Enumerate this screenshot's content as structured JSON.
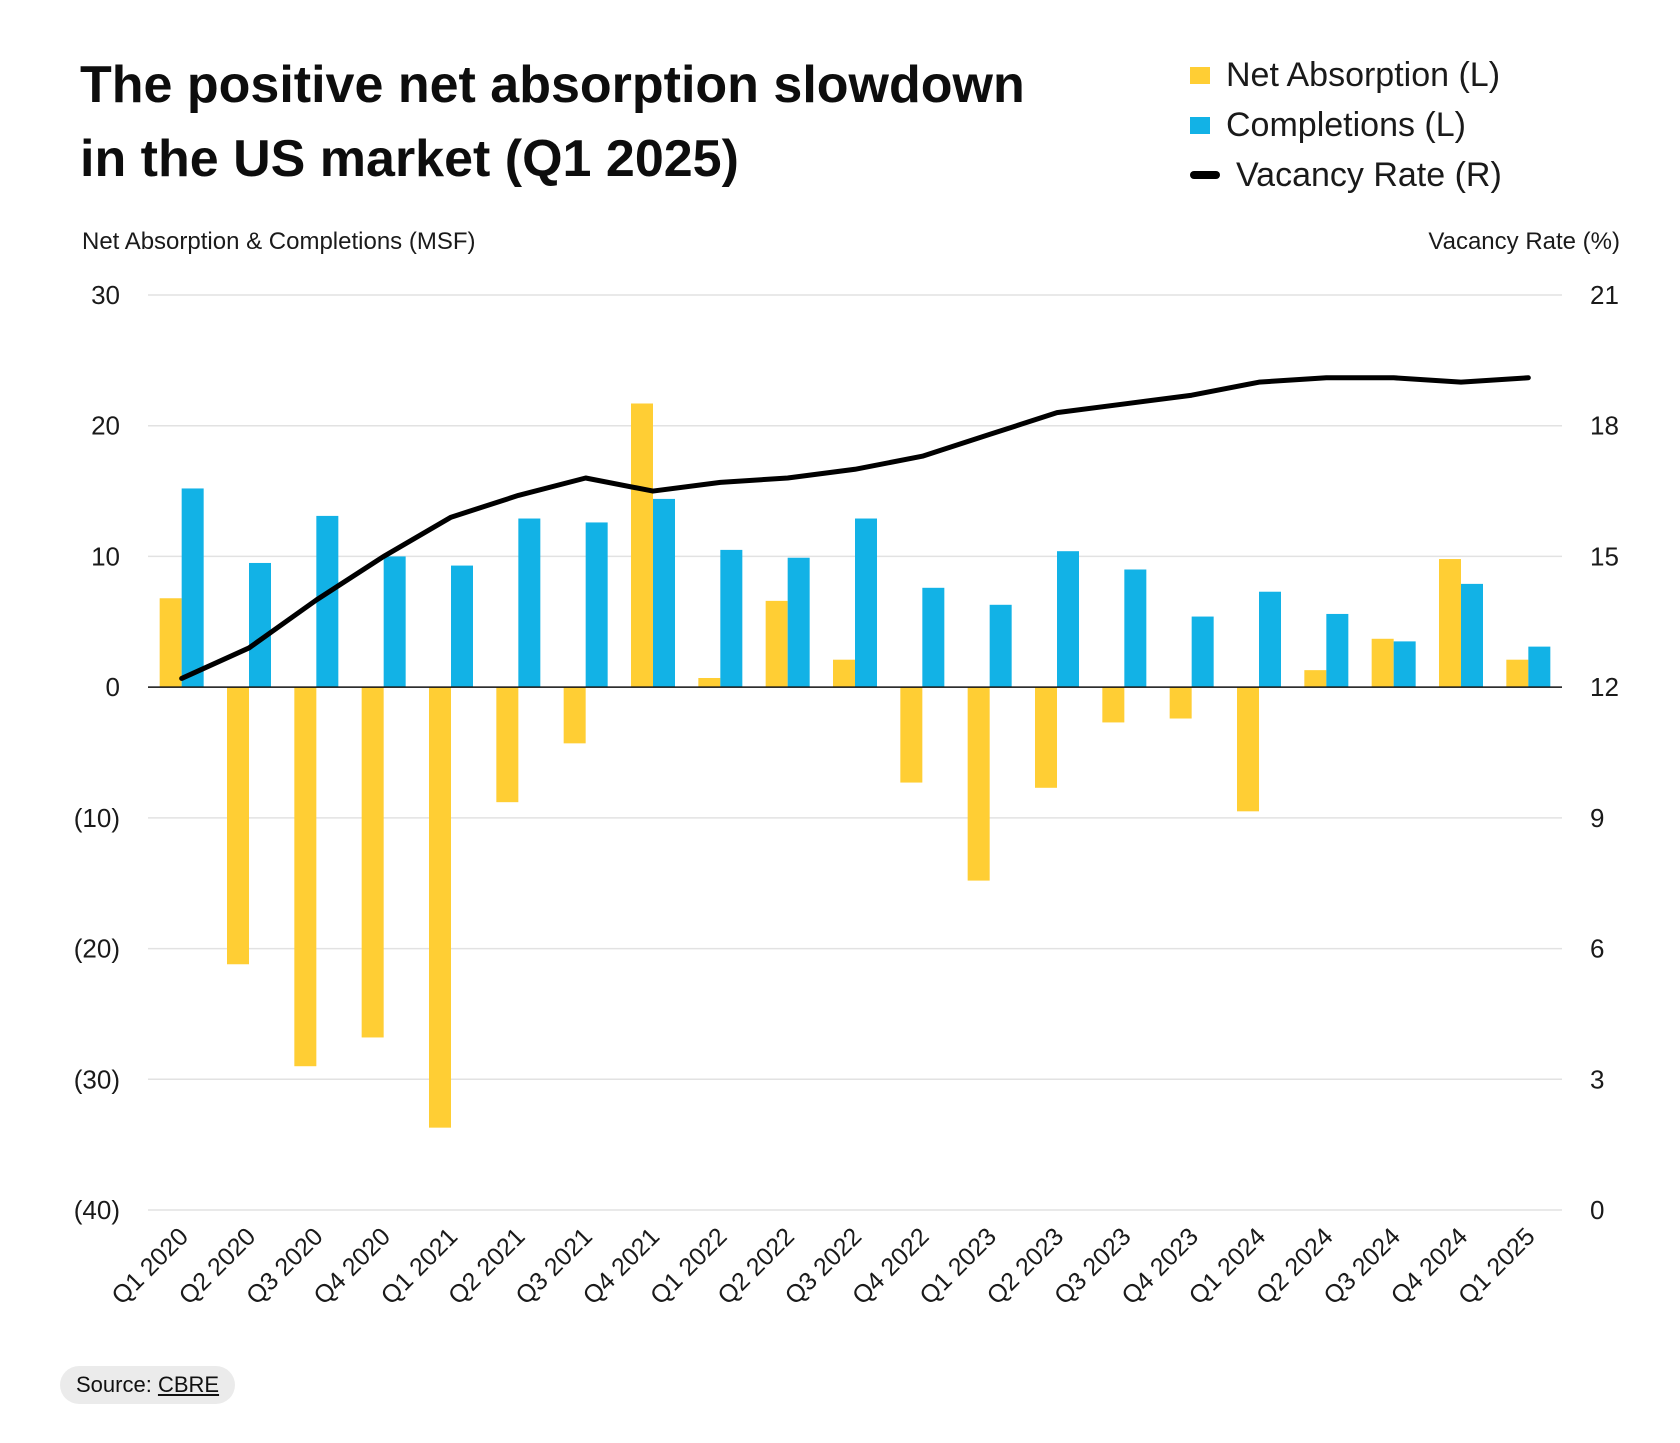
{
  "chart_data": {
    "type": "bar",
    "title_line1": "The positive net absorption slowdown",
    "title_line2": "in the US market (Q1 2025)",
    "ylabel": "Net Absorption & Completions (MSF)",
    "y2label": "Vacancy Rate (%)",
    "ylim": [
      -40,
      30
    ],
    "y2lim": [
      0,
      21
    ],
    "yticks": [
      30,
      20,
      10,
      0,
      -10,
      -20,
      -30,
      -40
    ],
    "ytick_labels": [
      "30",
      "20",
      "10",
      "0",
      "(10)",
      "(20)",
      "(30)",
      "(40)"
    ],
    "y2ticks": [
      21,
      18,
      15,
      12,
      9,
      6,
      3,
      0
    ],
    "y2tick_labels": [
      "21",
      "18",
      "15",
      "12",
      "9",
      "6",
      "3",
      "0"
    ],
    "categories": [
      "Q1 2020",
      "Q2 2020",
      "Q3 2020",
      "Q4 2020",
      "Q1 2021",
      "Q2 2021",
      "Q3 2021",
      "Q4 2021",
      "Q1 2022",
      "Q2 2022",
      "Q3 2022",
      "Q4 2022",
      "Q1 2023",
      "Q2 2023",
      "Q3 2023",
      "Q4 2023",
      "Q1 2024",
      "Q2 2024",
      "Q3 2024",
      "Q4 2024",
      "Q1 2025"
    ],
    "series": [
      {
        "name": "Net Absorption (L)",
        "axis": "left",
        "kind": "bar",
        "color": "#FFCE34",
        "values": [
          6.8,
          -21.2,
          -29.0,
          -26.8,
          -33.7,
          -8.8,
          -4.3,
          21.7,
          0.7,
          6.6,
          2.1,
          -7.3,
          -14.8,
          -7.7,
          -2.7,
          -2.4,
          -9.5,
          1.3,
          3.7,
          9.8,
          2.1
        ]
      },
      {
        "name": "Completions (L)",
        "axis": "left",
        "kind": "bar",
        "color": "#12B2E6",
        "values": [
          15.2,
          9.5,
          13.1,
          10.0,
          9.3,
          12.9,
          12.6,
          14.4,
          10.5,
          9.9,
          12.9,
          7.6,
          6.3,
          10.4,
          9.0,
          5.4,
          7.3,
          5.6,
          3.5,
          7.9,
          3.1
        ]
      },
      {
        "name": "Vacancy Rate (R)",
        "axis": "right",
        "kind": "line",
        "color": "#000000",
        "values": [
          12.2,
          12.9,
          14.0,
          15.0,
          15.9,
          16.4,
          16.8,
          16.5,
          16.7,
          16.8,
          17.0,
          17.3,
          17.8,
          18.3,
          18.5,
          18.7,
          19.0,
          19.1,
          19.1,
          19.0,
          19.1
        ]
      }
    ],
    "gridlines": true,
    "legend_position": "top-right",
    "source_prefix": "Source: ",
    "source_link": "CBRE"
  }
}
